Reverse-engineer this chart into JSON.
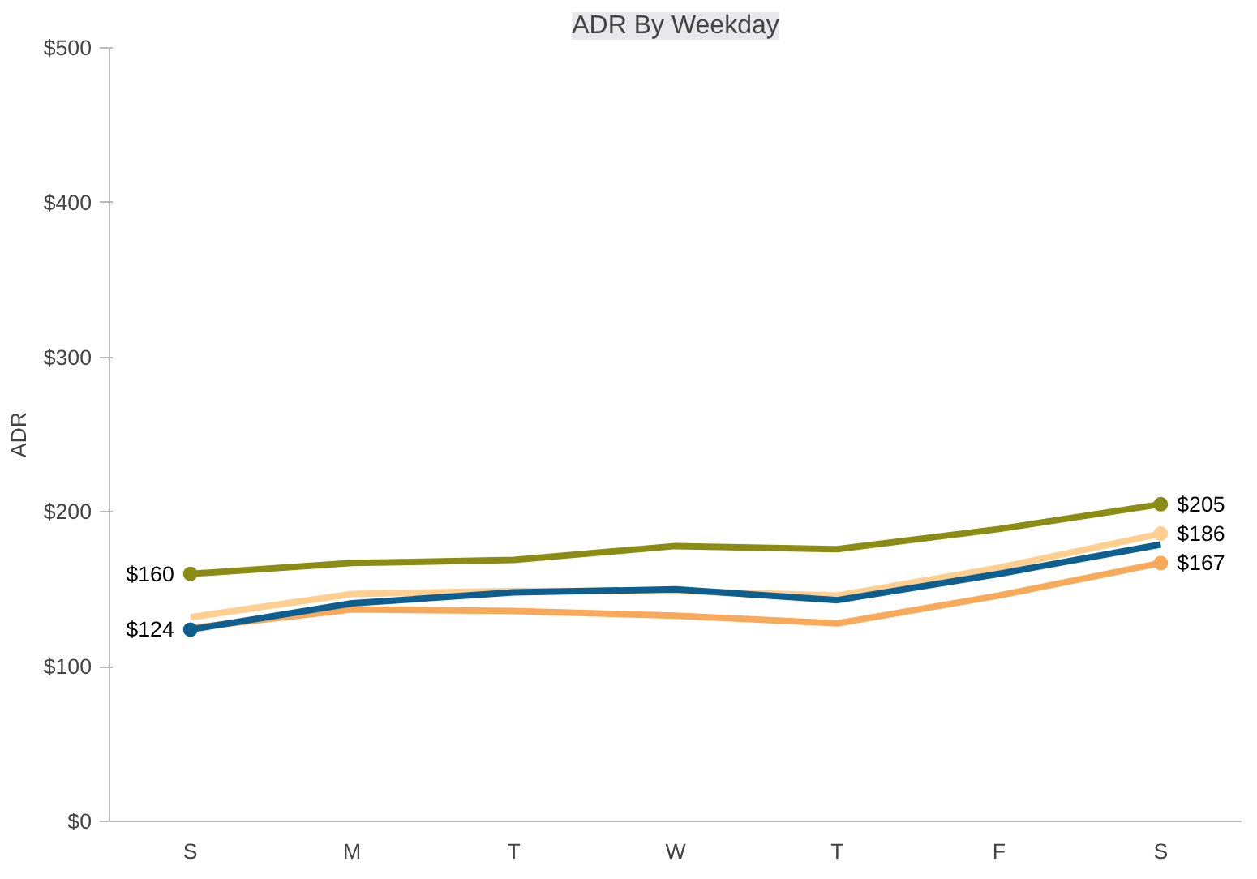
{
  "chart_data": {
    "type": "line",
    "title": "ADR By Weekday",
    "ylabel": "ADR",
    "categories": [
      "S",
      "M",
      "T",
      "W",
      "T",
      "F",
      "S"
    ],
    "ylim": [
      0,
      500
    ],
    "yticks": [
      {
        "value": 0,
        "label": "$0"
      },
      {
        "value": 100,
        "label": "$100"
      },
      {
        "value": 200,
        "label": "$200"
      },
      {
        "value": 300,
        "label": "$300"
      },
      {
        "value": 400,
        "label": "$400"
      },
      {
        "value": 500,
        "label": "$500"
      }
    ],
    "grid": false,
    "series": [
      {
        "color": "#8a8c14",
        "values": [
          160,
          167,
          169,
          178,
          176,
          189,
          205
        ],
        "value_labels": [
          "$160",
          null,
          null,
          null,
          null,
          null,
          "$205"
        ]
      },
      {
        "color": "#ffcf8f",
        "values": [
          132,
          147,
          149,
          149,
          146,
          164,
          186
        ],
        "value_labels": [
          null,
          null,
          null,
          null,
          null,
          null,
          "$186"
        ]
      },
      {
        "color": "#f9a95a",
        "values": [
          125,
          137,
          136,
          133,
          128,
          146,
          167
        ],
        "value_labels": [
          null,
          null,
          null,
          null,
          null,
          null,
          "$167"
        ]
      },
      {
        "color": "#0e5f8f",
        "values": [
          124,
          141,
          148,
          150,
          143,
          160,
          179
        ],
        "value_labels": [
          "$124",
          null,
          null,
          null,
          null,
          null,
          null
        ]
      }
    ]
  }
}
